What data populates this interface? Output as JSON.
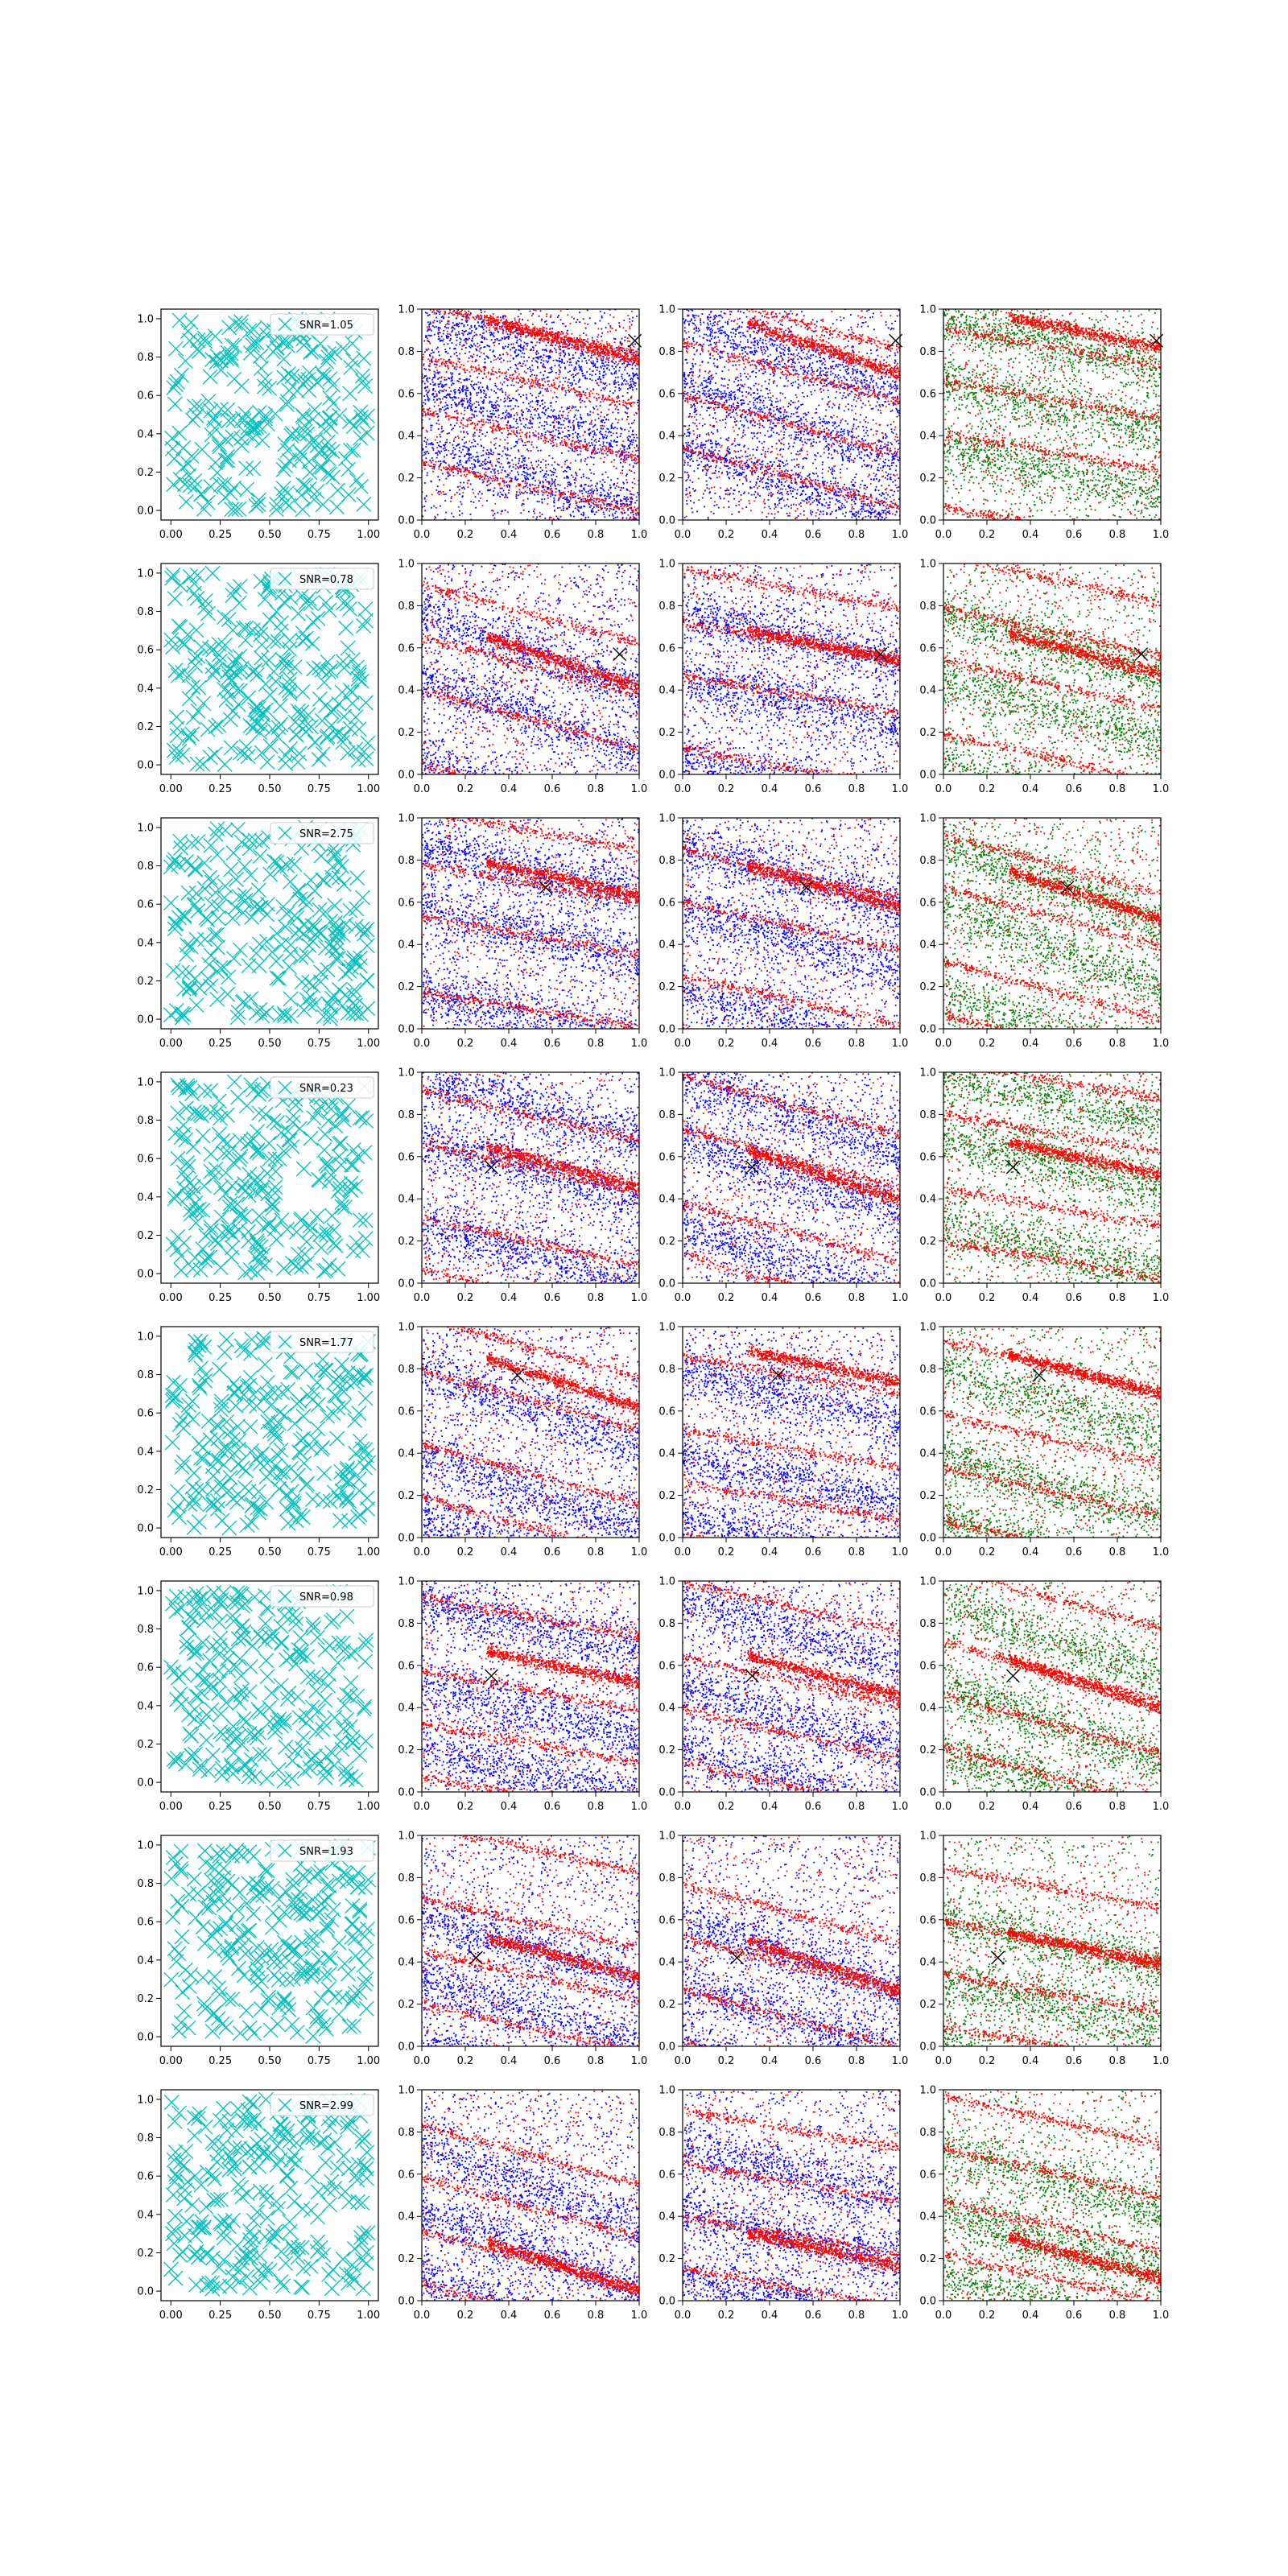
{
  "figure": {
    "rows": 8,
    "cols": 4,
    "marker_colors": {
      "noise_cross": "#00bfbf",
      "red": "#ff0000",
      "blue": "#0000ff",
      "green": "#008000",
      "target_cross": "#000000"
    }
  },
  "chart_data": {
    "type": "scatter",
    "panel_layout": "8 rows x 4 columns",
    "column_descriptions": [
      "cyan x markers (uniform random points) with SNR legend",
      "red and blue dot cloud with black x target",
      "red and blue dot cloud with black x target",
      "red and green dot cloud with black x target"
    ],
    "axes": {
      "col0": {
        "xlim": [
          -0.05,
          1.05
        ],
        "ylim": [
          -0.05,
          1.05
        ],
        "xticks": [
          "0.00",
          "0.25",
          "0.50",
          "0.75",
          "1.00"
        ],
        "yticks": [
          "0.0",
          "0.2",
          "0.4",
          "0.6",
          "0.8",
          "1.0"
        ]
      },
      "other": {
        "xlim": [
          0,
          1
        ],
        "ylim": [
          0,
          1
        ],
        "xticks": [
          "0.0",
          "0.2",
          "0.4",
          "0.6",
          "0.8",
          "1.0"
        ],
        "yticks": [
          "0.0",
          "0.2",
          "0.4",
          "0.6",
          "0.8",
          "1.0"
        ]
      }
    },
    "rows": [
      {
        "snr": "SNR=1.05",
        "target": [
          0.98,
          0.85
        ]
      },
      {
        "snr": "SNR=0.78",
        "target": [
          0.91,
          0.57
        ]
      },
      {
        "snr": "SNR=2.75",
        "target": [
          0.57,
          0.67
        ]
      },
      {
        "snr": "SNR=0.23",
        "target": [
          0.32,
          0.55
        ]
      },
      {
        "snr": "SNR=1.77",
        "target": [
          0.44,
          0.77
        ]
      },
      {
        "snr": "SNR=0.98",
        "target": [
          0.32,
          0.55
        ]
      },
      {
        "snr": "SNR=1.93",
        "target": [
          0.25,
          0.42
        ]
      },
      {
        "snr": "SNR=2.99",
        "target": null
      }
    ]
  }
}
